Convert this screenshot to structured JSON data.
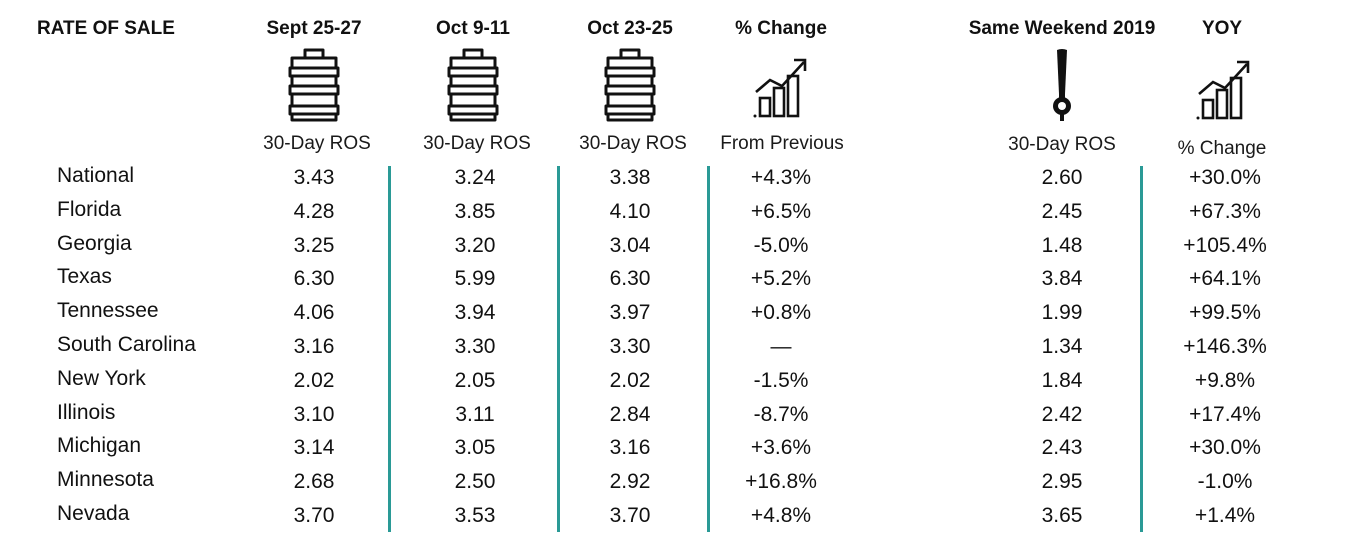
{
  "chart_data": {
    "type": "table",
    "corner_label": "RATE OF SALE",
    "columns": [
      {
        "title": "Sept 25-27",
        "subtitle": "30-Day ROS",
        "icon": "keg-icon"
      },
      {
        "title": "Oct 9-11",
        "subtitle": "30-Day ROS",
        "icon": "keg-icon"
      },
      {
        "title": "Oct 23-25",
        "subtitle": "30-Day ROS",
        "icon": "keg-icon"
      },
      {
        "title": "% Change",
        "subtitle": "From Previous",
        "icon": "growth-chart-icon"
      },
      {
        "title": "Same Weekend 2019",
        "subtitle": "30-Day ROS",
        "icon": "beer-tap-icon"
      },
      {
        "title": "YOY",
        "subtitle": "% Change",
        "icon": "growth-chart-icon"
      }
    ],
    "rows": [
      {
        "label": "National",
        "values": [
          "3.43",
          "3.24",
          "3.38",
          "+4.3%",
          "2.60",
          "+30.0%"
        ]
      },
      {
        "label": "Florida",
        "values": [
          "4.28",
          "3.85",
          "4.10",
          "+6.5%",
          "2.45",
          "+67.3%"
        ]
      },
      {
        "label": "Georgia",
        "values": [
          "3.25",
          "3.20",
          "3.04",
          "-5.0%",
          "1.48",
          "+105.4%"
        ]
      },
      {
        "label": "Texas",
        "values": [
          "6.30",
          "5.99",
          "6.30",
          "+5.2%",
          "3.84",
          "+64.1%"
        ]
      },
      {
        "label": "Tennessee",
        "values": [
          "4.06",
          "3.94",
          "3.97",
          "+0.8%",
          "1.99",
          "+99.5%"
        ]
      },
      {
        "label": "South Carolina",
        "values": [
          "3.16",
          "3.30",
          "3.30",
          "—",
          "1.34",
          "+146.3%"
        ]
      },
      {
        "label": "New York",
        "values": [
          "2.02",
          "2.05",
          "2.02",
          "-1.5%",
          "1.84",
          "+9.8%"
        ]
      },
      {
        "label": "Illinois",
        "values": [
          "3.10",
          "3.11",
          "2.84",
          "-8.7%",
          "2.42",
          "+17.4%"
        ]
      },
      {
        "label": "Michigan",
        "values": [
          "3.14",
          "3.05",
          "3.16",
          "+3.6%",
          "2.43",
          "+30.0%"
        ]
      },
      {
        "label": "Minnesota",
        "values": [
          "2.68",
          "2.50",
          "2.92",
          "+16.8%",
          "2.95",
          "-1.0%"
        ]
      },
      {
        "label": "Nevada",
        "values": [
          "3.70",
          "3.53",
          "3.70",
          "+4.8%",
          "3.65",
          "+1.4%"
        ]
      }
    ],
    "divider_color": "#2a9a96"
  }
}
